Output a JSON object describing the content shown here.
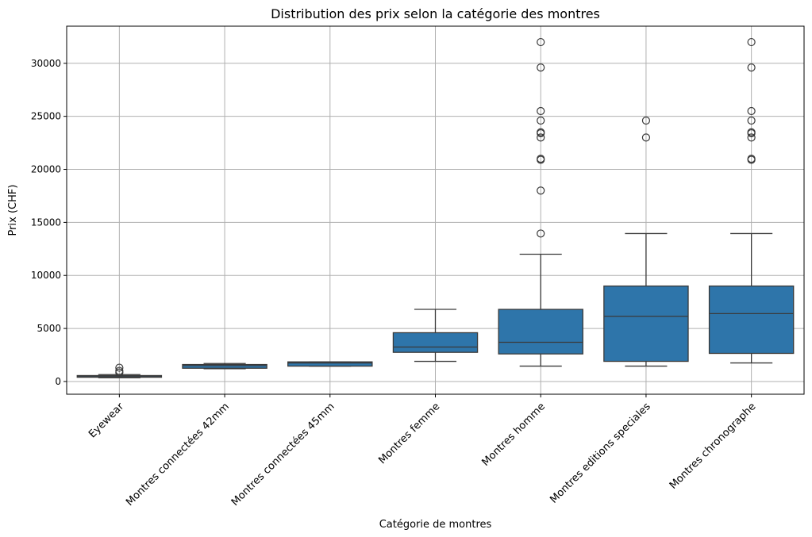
{
  "chart_data": {
    "type": "box",
    "title": "Distribution des prix selon la catégorie des montres",
    "xlabel": "Catégorie de montres",
    "ylabel": "Prix (CHF)",
    "ylim": [
      -1200,
      33500
    ],
    "yticks": [
      0,
      5000,
      10000,
      15000,
      20000,
      25000,
      30000
    ],
    "ytick_labels": [
      "0",
      "5000",
      "10000",
      "15000",
      "20000",
      "25000",
      "30000"
    ],
    "grid": true,
    "box_color": "#2e75aa",
    "line_color": "#3a3a3a",
    "categories": [
      "Eyewear",
      "Montres connectées 42mm",
      "Montres connectées 45mm",
      "Montres femme",
      "Montres homme",
      "Montres editions speciales",
      "Montres chronographe"
    ],
    "boxes": [
      {
        "whisker_low": 350,
        "q1": 400,
        "median": 500,
        "q3": 560,
        "whisker_high": 650,
        "outliers": [
          1300,
          1000,
          850
        ]
      },
      {
        "whisker_low": 1200,
        "q1": 1250,
        "median": 1500,
        "q3": 1600,
        "whisker_high": 1700,
        "outliers": []
      },
      {
        "whisker_low": 1450,
        "q1": 1450,
        "median": 1750,
        "q3": 1850,
        "whisker_high": 1850,
        "outliers": []
      },
      {
        "whisker_low": 1900,
        "q1": 2750,
        "median": 3250,
        "q3": 4600,
        "whisker_high": 6800,
        "outliers": []
      },
      {
        "whisker_low": 1450,
        "q1": 2600,
        "median": 3700,
        "q3": 6800,
        "whisker_high": 12000,
        "outliers": [
          32000,
          29600,
          25500,
          24600,
          23500,
          23400,
          23000,
          21000,
          20900,
          18000,
          13950
        ]
      },
      {
        "whisker_low": 1450,
        "q1": 1900,
        "median": 6150,
        "q3": 9000,
        "whisker_high": 13950,
        "outliers": [
          24600,
          23000
        ]
      },
      {
        "whisker_low": 1750,
        "q1": 2650,
        "median": 6400,
        "q3": 9000,
        "whisker_high": 13950,
        "outliers": [
          32000,
          29600,
          25500,
          24600,
          23500,
          23400,
          23000,
          21000,
          20900
        ]
      }
    ]
  }
}
